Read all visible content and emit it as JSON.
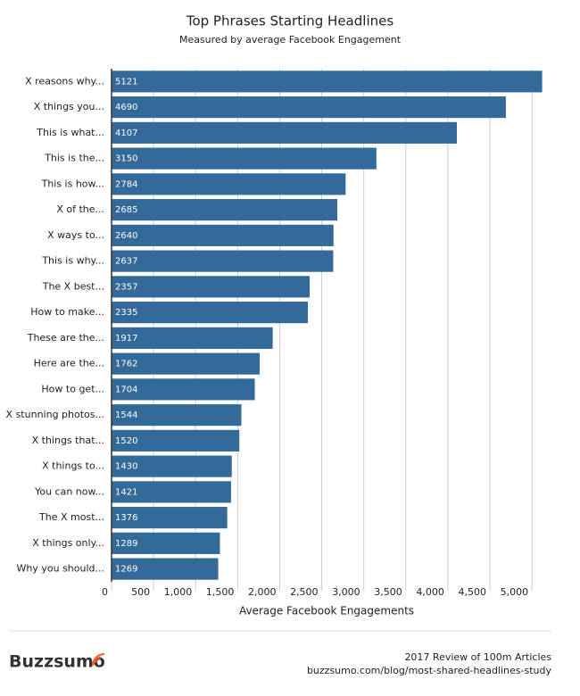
{
  "chart_data": {
    "type": "hbar",
    "title": "Top Phrases Starting Headlines",
    "subtitle": "Measured by average Facebook Engagement",
    "x_label": "Average Facebook Engagements",
    "categories": [
      "X reasons why...",
      "X things you...",
      "This is what...",
      "This is the...",
      "This is how...",
      "X of the...",
      "X ways to...",
      "This is why...",
      "The X best...",
      "How to make...",
      "These are the...",
      "Here are the...",
      "How to get...",
      "X stunning photos...",
      "X things that...",
      "X things to...",
      "You can now...",
      "The X most...",
      "X things only...",
      "Why you should..."
    ],
    "values": [
      5121,
      4690,
      4107,
      3150,
      2784,
      2685,
      2640,
      2637,
      2357,
      2335,
      1917,
      1762,
      1704,
      1544,
      1520,
      1430,
      1421,
      1376,
      1289,
      1269
    ],
    "color": "#336a99",
    "xlim": [
      0,
      5200
    ],
    "xticks": [
      0,
      500,
      {
        "value": 1000,
        "label": "1,000"
      },
      {
        "value": 1500,
        "label": "1,500"
      },
      {
        "value": 2000,
        "label": "2,000"
      },
      {
        "value": 2500,
        "label": "2,500"
      },
      {
        "value": 3000,
        "label": "3,000"
      },
      {
        "value": 3500,
        "label": "3,500"
      },
      {
        "value": 4000,
        "label": "4,000"
      },
      {
        "value": 4500,
        "label": "4,500"
      },
      {
        "value": 5000,
        "label": "5,000"
      }
    ],
    "grid": true
  },
  "footer": {
    "brand": "Buzzsumo",
    "note": "2017 Review of 100m Articles",
    "url": "buzzsumo.com/blog/most-shared-headlines-study"
  }
}
